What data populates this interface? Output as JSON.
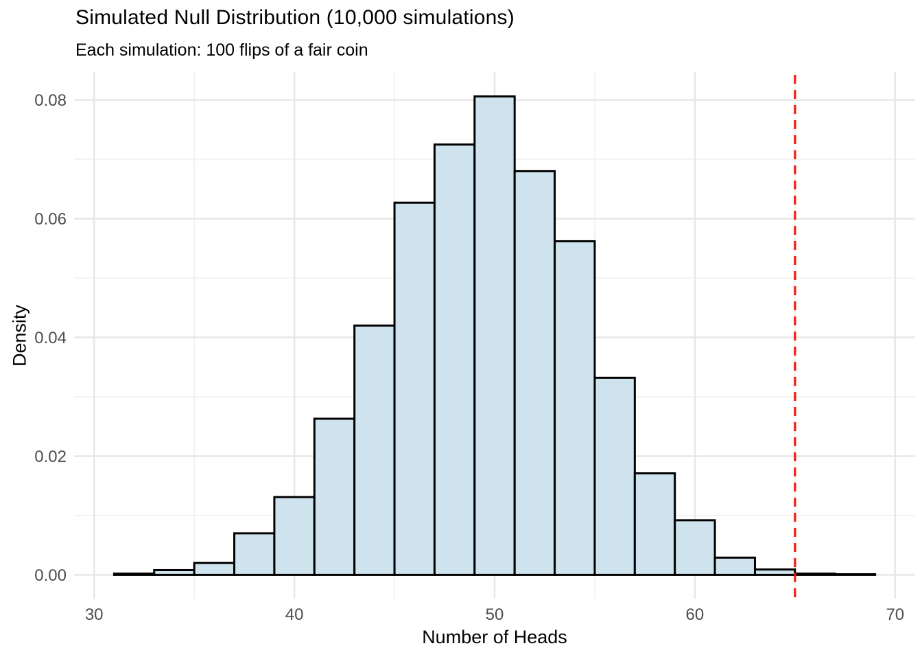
{
  "chart": {
    "title": "Simulated Null Distribution (10,000 simulations)",
    "subtitle": "Each simulation: 100 flips of a fair coin",
    "xlabel": "Number of Heads",
    "ylabel": "Density"
  },
  "chart_data": {
    "type": "bar",
    "subtype": "histogram",
    "title": "Simulated Null Distribution (10,000 simulations)",
    "subtitle": "Each simulation: 100 flips of a fair coin",
    "xlabel": "Number of Heads",
    "ylabel": "Density",
    "bin_width": 2,
    "bin_edges": [
      31,
      33,
      35,
      37,
      39,
      41,
      43,
      45,
      47,
      49,
      51,
      53,
      55,
      57,
      59,
      61,
      63,
      65,
      67,
      69
    ],
    "densities": [
      0.0002,
      0.0008,
      0.002,
      0.007,
      0.0131,
      0.0263,
      0.042,
      0.0627,
      0.0725,
      0.0806,
      0.068,
      0.0562,
      0.0332,
      0.0171,
      0.0092,
      0.0029,
      0.0009,
      0.0002,
      0.0001
    ],
    "x_ticks": {
      "values": [
        30,
        40,
        50,
        60,
        70
      ],
      "labels": [
        "30",
        "40",
        "50",
        "60",
        "70"
      ]
    },
    "x_minor_ticks": [
      35,
      45,
      55,
      65
    ],
    "y_ticks": {
      "values": [
        0,
        0.02,
        0.04,
        0.06,
        0.08
      ],
      "labels": [
        "0.00",
        "0.02",
        "0.04",
        "0.06",
        "0.08"
      ]
    },
    "y_minor_ticks": [
      0.01,
      0.03,
      0.05,
      0.07
    ],
    "xlim": [
      29,
      71
    ],
    "ylim": [
      -0.004,
      0.0847
    ],
    "vline": {
      "x": 65,
      "style": "dashed",
      "color": "#f8170b"
    },
    "grid": "major+minor",
    "legend": "none",
    "colors": {
      "bar_fill": "#cee3ed",
      "bar_stroke": "#000000",
      "grid_major": "#e7e7e7",
      "grid_minor": "#f3f3f3",
      "tick_text": "#4d4d4d",
      "text": "#000000",
      "background": "#ffffff"
    }
  }
}
